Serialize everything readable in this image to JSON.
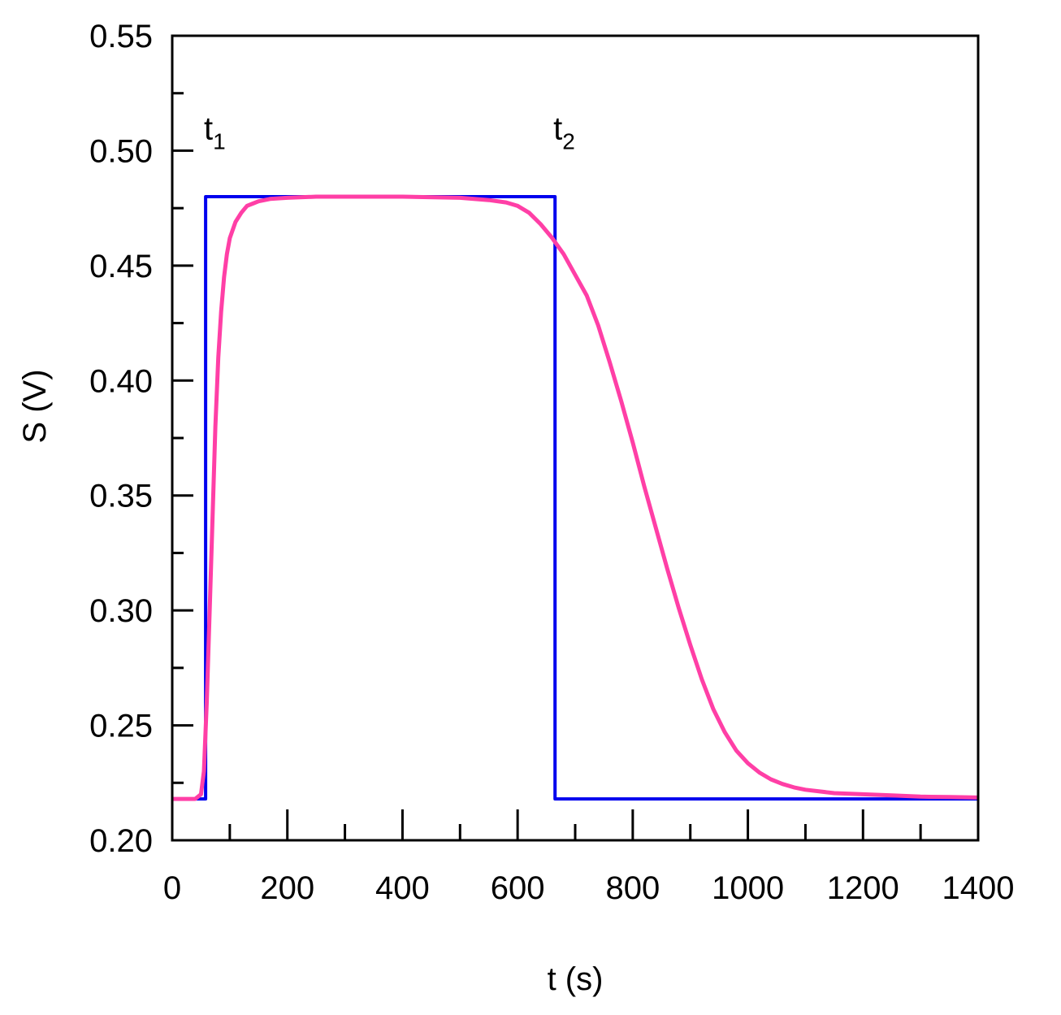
{
  "chart_data": {
    "type": "line",
    "title": "",
    "xlabel": "t (s)",
    "ylabel": "S (V)",
    "xlim": [
      0,
      1400
    ],
    "ylim": [
      0.2,
      0.55
    ],
    "x_major_ticks": [
      "0",
      "200",
      "400",
      "600",
      "800",
      "1000",
      "1200",
      "1400"
    ],
    "x_major_values": [
      0,
      200,
      400,
      600,
      800,
      1000,
      1200,
      1400
    ],
    "x_minor_values": [
      100,
      300,
      500,
      700,
      900,
      1100,
      1300
    ],
    "y_major_ticks": [
      "0.20",
      "0.25",
      "0.30",
      "0.35",
      "0.40",
      "0.45",
      "0.50",
      "0.55"
    ],
    "y_major_values": [
      0.2,
      0.25,
      0.3,
      0.35,
      0.4,
      0.45,
      0.5,
      0.55
    ],
    "y_minor_values": [
      0.225,
      0.275,
      0.325,
      0.375,
      0.425,
      0.475,
      0.525
    ],
    "grid": false,
    "annotations": [
      {
        "text": "t",
        "sub": "1",
        "x": 55,
        "y": 0.5
      },
      {
        "text": "t",
        "sub": "2",
        "x": 662,
        "y": 0.5
      }
    ],
    "series": [
      {
        "color": "#0000ee",
        "x": [
          0,
          58,
          58,
          665,
          665,
          1400
        ],
        "values": [
          0.218,
          0.218,
          0.48,
          0.48,
          0.218,
          0.218
        ]
      },
      {
        "color": "#ff3fa6",
        "x": [
          0,
          40,
          50,
          55,
          60,
          65,
          70,
          75,
          80,
          85,
          90,
          95,
          100,
          110,
          120,
          130,
          140,
          150,
          170,
          200,
          250,
          300,
          400,
          500,
          550,
          580,
          600,
          620,
          640,
          660,
          680,
          700,
          720,
          740,
          760,
          780,
          800,
          820,
          840,
          860,
          880,
          900,
          920,
          940,
          960,
          980,
          1000,
          1020,
          1040,
          1060,
          1080,
          1100,
          1150,
          1200,
          1250,
          1300,
          1350,
          1400
        ],
        "values": [
          0.218,
          0.218,
          0.22,
          0.23,
          0.26,
          0.3,
          0.34,
          0.38,
          0.41,
          0.43,
          0.445,
          0.455,
          0.462,
          0.469,
          0.473,
          0.476,
          0.477,
          0.478,
          0.479,
          0.4795,
          0.48,
          0.48,
          0.48,
          0.4795,
          0.4785,
          0.4775,
          0.476,
          0.473,
          0.468,
          0.462,
          0.455,
          0.446,
          0.437,
          0.424,
          0.408,
          0.391,
          0.373,
          0.354,
          0.336,
          0.318,
          0.301,
          0.285,
          0.27,
          0.257,
          0.247,
          0.239,
          0.2335,
          0.2295,
          0.2265,
          0.2245,
          0.223,
          0.222,
          0.2205,
          0.22,
          0.2195,
          0.219,
          0.2188,
          0.2186
        ]
      }
    ]
  }
}
